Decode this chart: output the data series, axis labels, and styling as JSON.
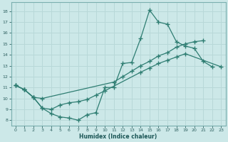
{
  "xlabel": "Humidex (Indice chaleur)",
  "xlim": [
    -0.5,
    23.5
  ],
  "ylim": [
    7.5,
    18.8
  ],
  "xticks": [
    0,
    1,
    2,
    3,
    4,
    5,
    6,
    7,
    8,
    9,
    10,
    11,
    12,
    13,
    14,
    15,
    16,
    17,
    18,
    19,
    20,
    21,
    22,
    23
  ],
  "yticks": [
    8,
    9,
    10,
    11,
    12,
    13,
    14,
    15,
    16,
    17,
    18
  ],
  "bg_color": "#cce8e8",
  "line_color": "#2e7d72",
  "grid_color": "#b8d8d8",
  "series": [
    {
      "x": [
        0,
        1,
        2,
        3,
        4,
        5,
        6,
        7,
        8,
        9,
        10,
        11,
        12,
        13,
        14,
        15,
        16,
        17,
        18,
        19,
        20,
        21,
        22
      ],
      "y": [
        11.2,
        10.8,
        10.1,
        9.1,
        8.6,
        8.3,
        8.2,
        8.0,
        8.5,
        8.7,
        11.0,
        11.0,
        13.2,
        13.3,
        15.5,
        18.1,
        17.0,
        16.8,
        15.2,
        14.8,
        14.6,
        13.4,
        12.9
      ]
    },
    {
      "x": [
        0,
        1,
        2,
        3,
        11,
        12,
        13,
        14,
        15,
        16,
        17,
        18,
        19,
        20,
        21
      ],
      "y": [
        11.2,
        10.8,
        10.1,
        10.0,
        11.5,
        12.0,
        12.5,
        13.0,
        13.4,
        13.9,
        14.2,
        14.7,
        15.0,
        15.2,
        15.3
      ]
    },
    {
      "x": [
        0,
        1,
        2,
        3,
        4,
        5,
        6,
        7,
        8,
        9,
        10,
        14,
        15,
        16,
        17,
        18,
        19,
        23
      ],
      "y": [
        11.2,
        10.8,
        10.1,
        9.1,
        9.0,
        9.4,
        9.6,
        9.7,
        9.9,
        10.3,
        10.7,
        12.4,
        12.8,
        13.2,
        13.5,
        13.8,
        14.1,
        12.9
      ]
    }
  ]
}
